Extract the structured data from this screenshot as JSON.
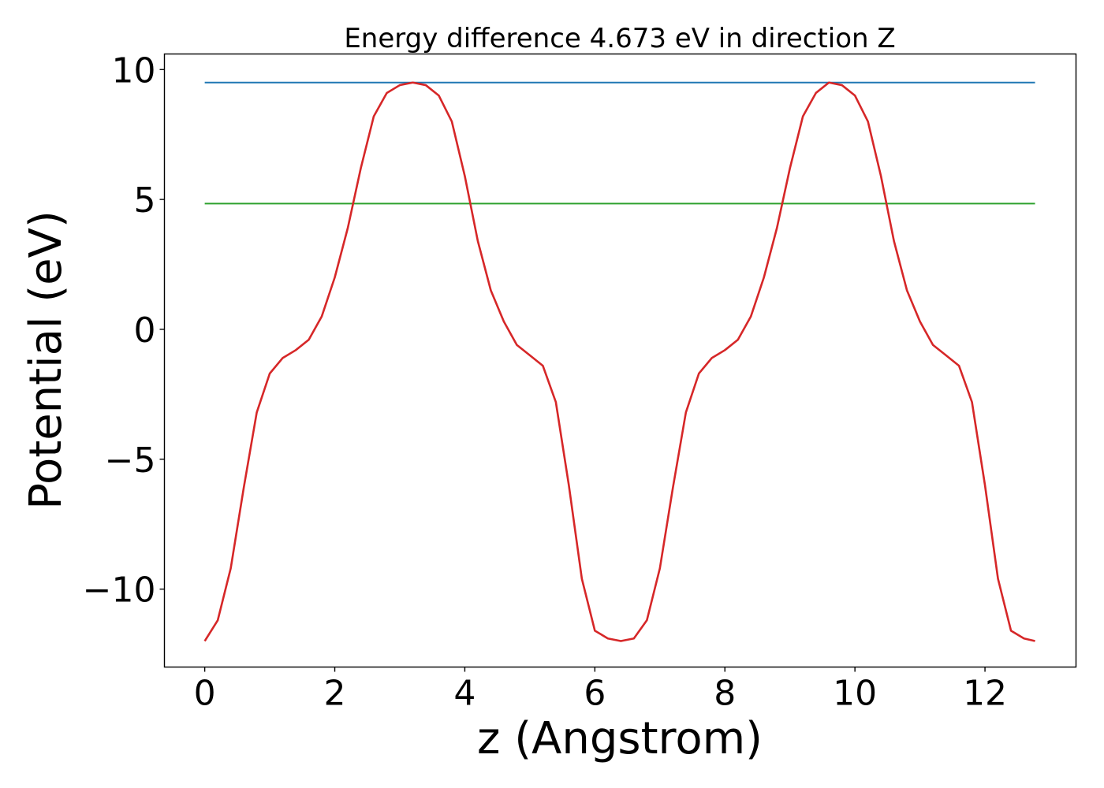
{
  "chart_data": {
    "type": "line",
    "title": "Energy difference 4.673 eV in direction Z",
    "xlabel": "z (Angstrom)",
    "ylabel": "Potential (eV)",
    "xlim": [
      -0.62,
      13.4
    ],
    "ylim": [
      -13.0,
      10.6
    ],
    "xticks": [
      0,
      2,
      4,
      6,
      8,
      10,
      12
    ],
    "xtick_labels": [
      "0",
      "2",
      "4",
      "6",
      "8",
      "10",
      "12"
    ],
    "yticks": [
      -10,
      -5,
      0,
      5,
      10
    ],
    "ytick_labels": [
      "−10",
      "−5",
      "0",
      "5",
      "10"
    ],
    "grid": false,
    "series": [
      {
        "color": "#1f77b4",
        "x": [
          0,
          12.77
        ],
        "y": [
          9.5,
          9.5
        ]
      },
      {
        "color": "#2ca02c",
        "x": [
          0,
          12.77
        ],
        "y": [
          4.84,
          4.84
        ]
      },
      {
        "color": "#d62728",
        "x": [
          0,
          0.2,
          0.4,
          0.6,
          0.8,
          1.0,
          1.2,
          1.4,
          1.6,
          1.8,
          2.0,
          2.2,
          2.4,
          2.6,
          2.8,
          3.0,
          3.2,
          3.4,
          3.6,
          3.8,
          4.0,
          4.2,
          4.4,
          4.6,
          4.8,
          5.0,
          5.2,
          5.4,
          5.6,
          5.8,
          6.0,
          6.2,
          6.4,
          6.6,
          6.8,
          7.0,
          7.2,
          7.4,
          7.6,
          7.8,
          8.0,
          8.2,
          8.4,
          8.6,
          8.8,
          9.0,
          9.2,
          9.4,
          9.6,
          9.8,
          10.0,
          10.2,
          10.4,
          10.6,
          10.8,
          11.0,
          11.2,
          11.4,
          11.6,
          11.8,
          12.0,
          12.2,
          12.4,
          12.6,
          12.77
        ],
        "y": [
          -12.0,
          -11.2,
          -9.2,
          -6.1,
          -3.2,
          -1.7,
          -1.1,
          -0.8,
          -0.4,
          0.5,
          2.0,
          3.9,
          6.2,
          8.2,
          9.1,
          9.4,
          9.5,
          9.4,
          9.0,
          8.0,
          5.9,
          3.4,
          1.5,
          0.3,
          -0.6,
          -1.0,
          -1.4,
          -2.8,
          -6.0,
          -9.6,
          -11.6,
          -11.9,
          -12.0,
          -11.9,
          -11.2,
          -9.2,
          -6.1,
          -3.2,
          -1.7,
          -1.1,
          -0.8,
          -0.4,
          0.5,
          2.0,
          3.9,
          6.2,
          8.2,
          9.1,
          9.5,
          9.4,
          9.0,
          8.0,
          5.9,
          3.4,
          1.5,
          0.3,
          -0.6,
          -1.0,
          -1.4,
          -2.8,
          -6.0,
          -9.6,
          -11.6,
          -11.9,
          -12.0
        ]
      }
    ]
  }
}
